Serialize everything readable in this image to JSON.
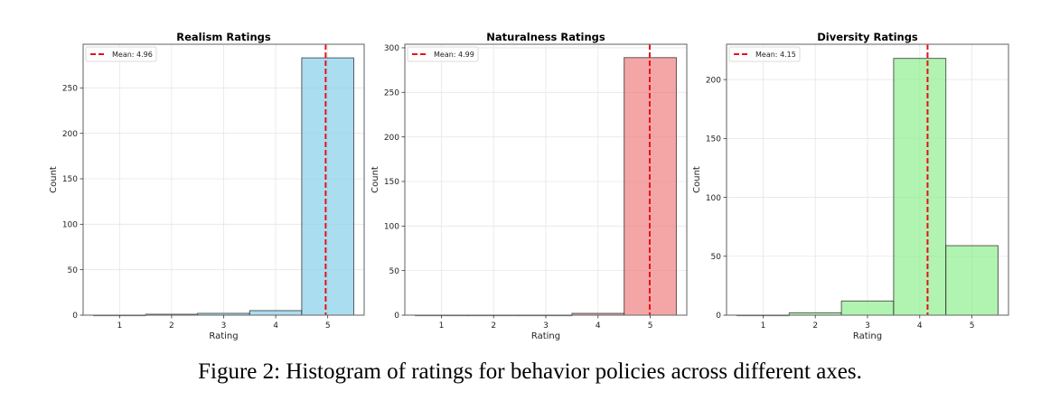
{
  "caption": "Figure 2: Histogram of ratings for behavior policies across different axes.",
  "chart_data": [
    {
      "type": "bar",
      "title": "Realism Ratings",
      "xlabel": "Rating",
      "ylabel": "Count",
      "categories": [
        "1",
        "2",
        "3",
        "4",
        "5"
      ],
      "values": [
        0,
        1,
        2,
        5,
        283
      ],
      "xlim": [
        0.3,
        5.7
      ],
      "ylim": [
        0,
        298
      ],
      "yticks": [
        0,
        50,
        100,
        150,
        200,
        250
      ],
      "bar_color": "#87CEEB",
      "mean": 4.96,
      "mean_label": "Mean: 4.96",
      "mean_color": "#e8101a",
      "legend": "top-left",
      "grid": true
    },
    {
      "type": "bar",
      "title": "Naturalness Ratings",
      "xlabel": "Rating",
      "ylabel": "Count",
      "categories": [
        "1",
        "2",
        "3",
        "4",
        "5"
      ],
      "values": [
        0,
        0,
        0,
        2,
        289
      ],
      "xlim": [
        0.3,
        5.7
      ],
      "ylim": [
        0,
        304
      ],
      "yticks": [
        0,
        50,
        100,
        150,
        200,
        250,
        300
      ],
      "bar_color": "#F08080",
      "mean": 4.99,
      "mean_label": "Mean: 4.99",
      "mean_color": "#e8101a",
      "legend": "top-left",
      "grid": true
    },
    {
      "type": "bar",
      "title": "Diversity Ratings",
      "xlabel": "Rating",
      "ylabel": "Count",
      "categories": [
        "1",
        "2",
        "3",
        "4",
        "5"
      ],
      "values": [
        0,
        2,
        12,
        218,
        59
      ],
      "xlim": [
        0.3,
        5.7
      ],
      "ylim": [
        0,
        230
      ],
      "yticks": [
        0,
        50,
        100,
        150,
        200
      ],
      "bar_color": "#90EE90",
      "mean": 4.15,
      "mean_label": "Mean: 4.15",
      "mean_color": "#e8101a",
      "legend": "top-left",
      "grid": true
    }
  ]
}
